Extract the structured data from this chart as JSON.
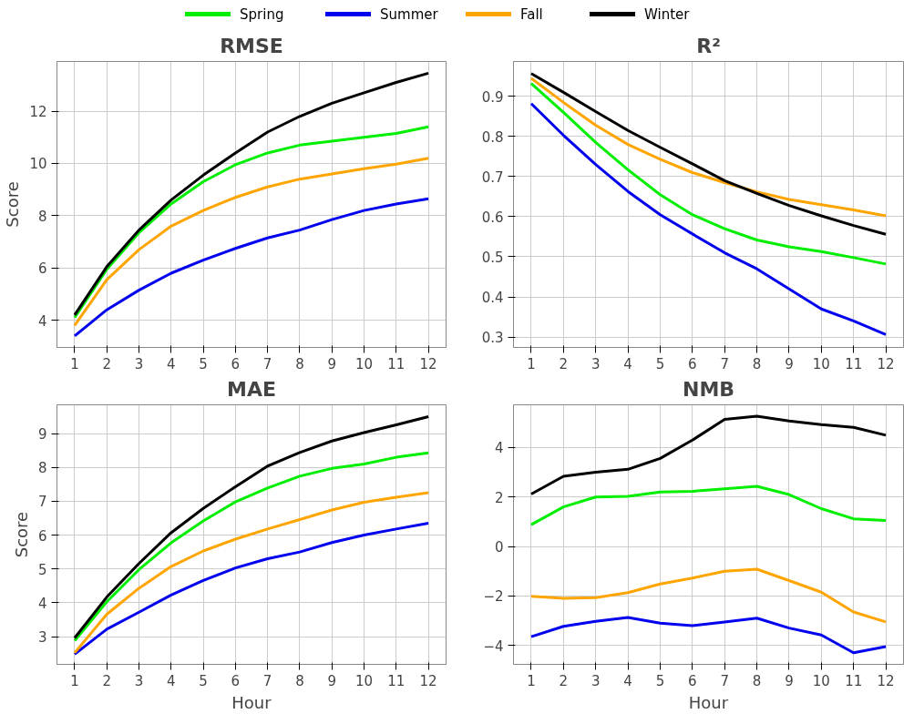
{
  "chart_data": [
    {
      "type": "line",
      "title": "RMSE",
      "ylabel": "Score",
      "legend": "top",
      "grid": true,
      "x": [
        1,
        2,
        3,
        4,
        5,
        6,
        7,
        8,
        9,
        10,
        11,
        12
      ],
      "xlim": [
        0.45,
        12.55
      ],
      "xticks": [
        1,
        2,
        3,
        4,
        5,
        6,
        7,
        8,
        9,
        10,
        11,
        12
      ],
      "ylim": [
        2.96,
        13.9
      ],
      "yticks": [
        4,
        6,
        8,
        10,
        12
      ],
      "series": [
        {
          "name": "Spring",
          "color": "#00ee00",
          "values": [
            4.1,
            5.95,
            7.35,
            8.45,
            9.3,
            9.95,
            10.4,
            10.7,
            10.85,
            11.0,
            11.15,
            11.4
          ]
        },
        {
          "name": "Summer",
          "color": "#0000ee",
          "values": [
            3.4,
            4.4,
            5.15,
            5.8,
            6.3,
            6.75,
            7.15,
            7.45,
            7.85,
            8.2,
            8.45,
            8.65
          ]
        },
        {
          "name": "Fall",
          "color": "#ffa500",
          "values": [
            3.8,
            5.55,
            6.7,
            7.6,
            8.2,
            8.7,
            9.1,
            9.4,
            9.6,
            9.8,
            9.97,
            10.2
          ]
        },
        {
          "name": "Winter",
          "color": "#000000",
          "values": [
            4.2,
            6.05,
            7.45,
            8.6,
            9.55,
            10.4,
            11.2,
            11.8,
            12.3,
            12.7,
            13.1,
            13.45
          ]
        }
      ]
    },
    {
      "type": "line",
      "title": "R²",
      "grid": true,
      "x": [
        1,
        2,
        3,
        4,
        5,
        6,
        7,
        8,
        9,
        10,
        11,
        12
      ],
      "xlim": [
        0.45,
        12.55
      ],
      "xticks": [
        1,
        2,
        3,
        4,
        5,
        6,
        7,
        8,
        9,
        10,
        11,
        12
      ],
      "ylim": [
        0.274,
        0.987
      ],
      "yticks": [
        0.3,
        0.4,
        0.5,
        0.6,
        0.7,
        0.8,
        0.9
      ],
      "series": [
        {
          "color": "#00ee00",
          "values": [
            0.932,
            0.86,
            0.785,
            0.717,
            0.655,
            0.605,
            0.57,
            0.542,
            0.525,
            0.513,
            0.498,
            0.482
          ]
        },
        {
          "color": "#0000ee",
          "values": [
            0.882,
            0.803,
            0.73,
            0.663,
            0.605,
            0.557,
            0.51,
            0.47,
            0.42,
            0.37,
            0.34,
            0.306
          ]
        },
        {
          "color": "#ffa500",
          "values": [
            0.945,
            0.885,
            0.828,
            0.78,
            0.743,
            0.71,
            0.685,
            0.662,
            0.643,
            0.63,
            0.617,
            0.602
          ]
        },
        {
          "color": "#000000",
          "values": [
            0.957,
            0.91,
            0.862,
            0.815,
            0.773,
            0.732,
            0.69,
            0.658,
            0.628,
            0.602,
            0.578,
            0.556
          ]
        }
      ]
    },
    {
      "type": "line",
      "title": "MAE",
      "xlabel": "Hour",
      "ylabel": "Score",
      "grid": true,
      "x": [
        1,
        2,
        3,
        4,
        5,
        6,
        7,
        8,
        9,
        10,
        11,
        12
      ],
      "xlim": [
        0.45,
        12.55
      ],
      "xticks": [
        1,
        2,
        3,
        4,
        5,
        6,
        7,
        8,
        9,
        10,
        11,
        12
      ],
      "ylim": [
        2.18,
        9.85
      ],
      "yticks": [
        3,
        4,
        5,
        6,
        7,
        8,
        9
      ],
      "series": [
        {
          "color": "#00ee00",
          "values": [
            2.88,
            4.03,
            4.98,
            5.77,
            6.42,
            6.98,
            7.39,
            7.74,
            7.97,
            8.1,
            8.3,
            8.43
          ]
        },
        {
          "color": "#0000ee",
          "values": [
            2.48,
            3.22,
            3.72,
            4.23,
            4.66,
            5.03,
            5.3,
            5.5,
            5.78,
            6.0,
            6.18,
            6.35
          ]
        },
        {
          "color": "#ffa500",
          "values": [
            2.52,
            3.66,
            4.43,
            5.07,
            5.53,
            5.88,
            6.18,
            6.46,
            6.74,
            6.97,
            7.12,
            7.25
          ]
        },
        {
          "color": "#000000",
          "values": [
            2.96,
            4.17,
            5.16,
            6.07,
            6.79,
            7.43,
            8.04,
            8.44,
            8.78,
            9.03,
            9.26,
            9.5
          ]
        }
      ]
    },
    {
      "type": "line",
      "title": "NMB",
      "xlabel": "Hour",
      "grid": true,
      "x": [
        1,
        2,
        3,
        4,
        5,
        6,
        7,
        8,
        9,
        10,
        11,
        12
      ],
      "xlim": [
        0.45,
        12.55
      ],
      "xticks": [
        1,
        2,
        3,
        4,
        5,
        6,
        7,
        8,
        9,
        10,
        11,
        12
      ],
      "ylim": [
        -4.77,
        5.73
      ],
      "yticks": [
        {
          "value": -4,
          "label": "−4"
        },
        {
          "value": -2,
          "label": "−2"
        },
        0,
        2,
        4
      ],
      "series": [
        {
          "color": "#00ee00",
          "values": [
            0.88,
            1.6,
            2.0,
            2.03,
            2.2,
            2.23,
            2.33,
            2.43,
            2.1,
            1.53,
            1.12,
            1.05
          ]
        },
        {
          "color": "#0000ee",
          "values": [
            -3.65,
            -3.23,
            -3.03,
            -2.87,
            -3.1,
            -3.2,
            -3.06,
            -2.9,
            -3.3,
            -3.58,
            -4.3,
            -4.05
          ]
        },
        {
          "color": "#ffa500",
          "values": [
            -2.02,
            -2.1,
            -2.07,
            -1.87,
            -1.52,
            -1.28,
            -1.0,
            -0.92,
            -1.38,
            -1.85,
            -2.65,
            -3.05
          ]
        },
        {
          "color": "#000000",
          "values": [
            2.12,
            2.84,
            3.0,
            3.12,
            3.56,
            4.3,
            5.14,
            5.27,
            5.08,
            4.93,
            4.82,
            4.5
          ]
        }
      ]
    }
  ]
}
